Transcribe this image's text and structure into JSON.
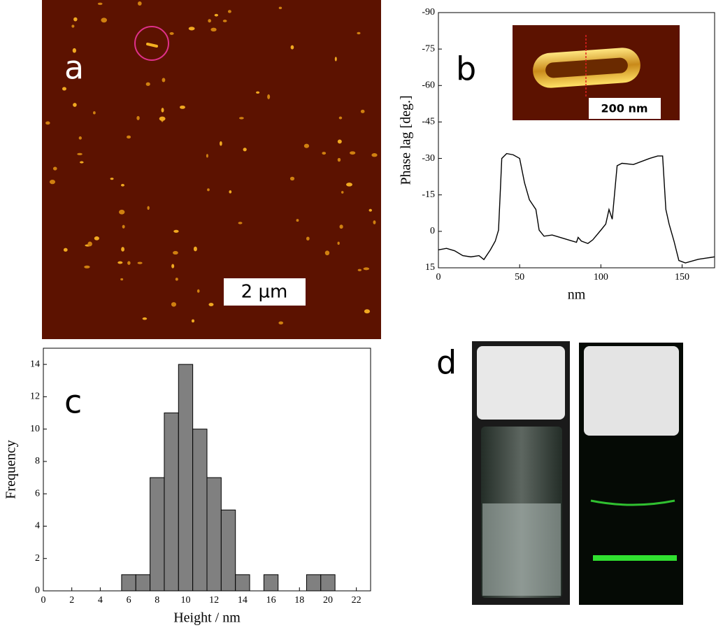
{
  "panels": {
    "a": {
      "label": "a",
      "scale_bar": "2 µm"
    },
    "d": {
      "label": "d"
    }
  },
  "chart_data": [
    {
      "type": "line",
      "panel_label": "b",
      "inset_scale_bar": "200 nm",
      "ylabel": "Phase lag [deg.]",
      "xlabel": "nm",
      "x": [
        0,
        5,
        10,
        15,
        20,
        25,
        28,
        32,
        35,
        37,
        38,
        39,
        42,
        46,
        50,
        53,
        56,
        58,
        60,
        62,
        65,
        70,
        75,
        80,
        85,
        86,
        88,
        92,
        95,
        100,
        103,
        105,
        107,
        110,
        113,
        120,
        130,
        135,
        138,
        140,
        142,
        145,
        148,
        152,
        160,
        165,
        170
      ],
      "series": [
        {
          "name": "Phase lag",
          "color": "#000000",
          "values": [
            7.6,
            7,
            8,
            10,
            10.5,
            10,
            11.6,
            7.6,
            4,
            -0.5,
            -15,
            -30,
            -32,
            -31.5,
            -30,
            -20,
            -13,
            -11,
            -9,
            -0.5,
            2,
            1.5,
            2.5,
            3.5,
            4.5,
            2.5,
            4,
            5,
            3.5,
            -0.5,
            -3,
            -9,
            -5,
            -27,
            -28,
            -27.5,
            -30,
            -31,
            -31,
            -9,
            -3,
            4,
            12,
            13,
            11.5,
            11,
            10.5
          ]
        }
      ],
      "xlim": [
        0,
        170
      ],
      "xticks": [
        0,
        50,
        100,
        150
      ],
      "ylim": [
        15,
        -90
      ],
      "yticks": [
        -90,
        -75,
        -60,
        -45,
        -30,
        -15,
        0,
        15
      ]
    },
    {
      "type": "histogram",
      "panel_label": "c",
      "ylabel": "Frequency",
      "xlabel": "Height / nm",
      "color": "#808080",
      "bins": [
        5.5,
        6.5,
        7.5,
        8.5,
        9.5,
        10.5,
        11.5,
        12.5,
        13.5,
        14.5,
        15.5,
        16.5,
        17.5,
        18.5,
        19.5,
        20.5
      ],
      "values": [
        1,
        1,
        7,
        11,
        14,
        10,
        7,
        5,
        1,
        0,
        1,
        0,
        0,
        1,
        1
      ],
      "xlim": [
        0,
        23
      ],
      "xticks": [
        0,
        2,
        4,
        6,
        8,
        10,
        12,
        14,
        16,
        18,
        20,
        22
      ],
      "ylim": [
        0,
        15
      ],
      "yticks": [
        0,
        2,
        4,
        6,
        8,
        10,
        12,
        14
      ]
    }
  ]
}
